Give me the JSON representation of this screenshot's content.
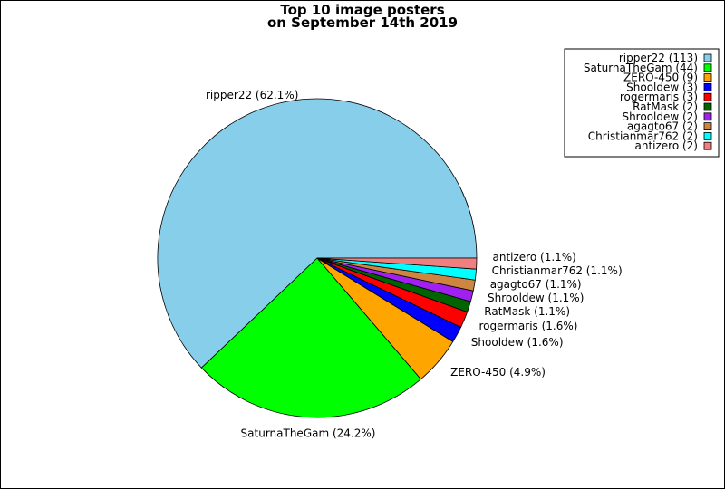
{
  "chart_data": {
    "type": "pie",
    "title": [
      "Top 10 image posters",
      "on September 14th 2019"
    ],
    "slices": [
      {
        "name": "ripper22",
        "value": 113,
        "percent_label": "ripper22 (62.1%)",
        "legend_label": "ripper22 (113)",
        "color": "#87ceeb"
      },
      {
        "name": "SaturnaTheGam",
        "value": 44,
        "percent_label": "SaturnaTheGam (24.2%)",
        "legend_label": "SaturnaTheGam (44)",
        "color": "#00ff00"
      },
      {
        "name": "ZERO-450",
        "value": 9,
        "percent_label": "ZERO-450 (4.9%)",
        "legend_label": "ZERO-450 (9)",
        "color": "#ffa500"
      },
      {
        "name": "Shooldew",
        "value": 3,
        "percent_label": "Shooldew (1.6%)",
        "legend_label": "Shooldew (3)",
        "color": "#0000ff"
      },
      {
        "name": "rogermaris",
        "value": 3,
        "percent_label": "rogermaris (1.6%)",
        "legend_label": "rogermaris (3)",
        "color": "#ff0000"
      },
      {
        "name": "RatMask",
        "value": 2,
        "percent_label": "RatMask (1.1%)",
        "legend_label": "RatMask (2)",
        "color": "#006400"
      },
      {
        "name": "Shrooldew",
        "value": 2,
        "percent_label": "Shrooldew (1.1%)",
        "legend_label": "Shrooldew (2)",
        "color": "#a020f0"
      },
      {
        "name": "agagto67",
        "value": 2,
        "percent_label": "agagto67 (1.1%)",
        "legend_label": "agagto67 (2)",
        "color": "#cd853f"
      },
      {
        "name": "Christianmar762",
        "value": 2,
        "percent_label": "Christianmar762 (1.1%)",
        "legend_label": "Christianmar762 (2)",
        "color": "#00ffff"
      },
      {
        "name": "antizero",
        "value": 2,
        "percent_label": "antizero (1.1%)",
        "legend_label": "antizero (2)",
        "color": "#f08080"
      }
    ],
    "legend_position": "top-right"
  }
}
